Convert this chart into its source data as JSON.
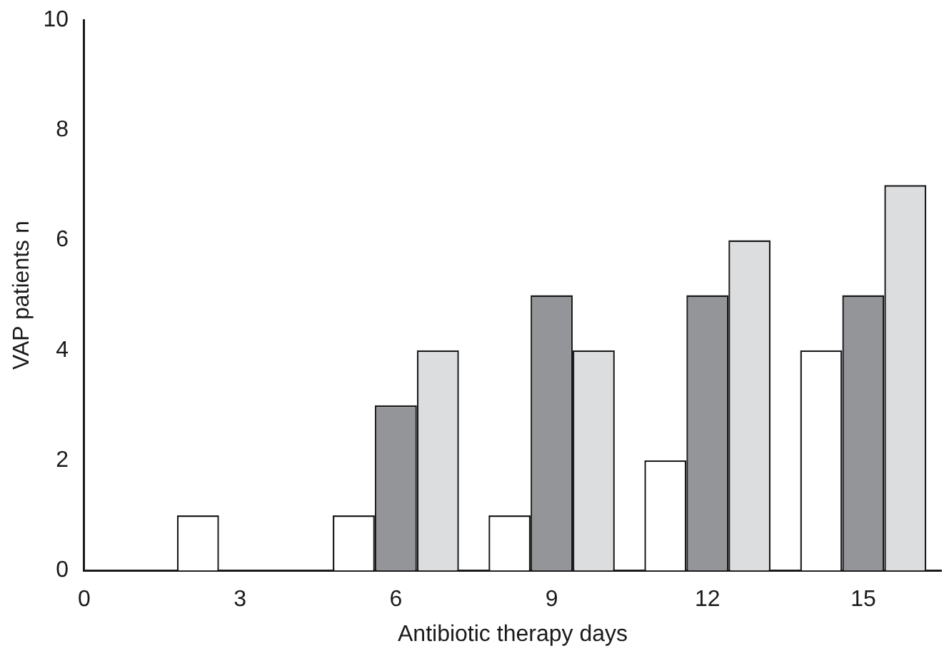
{
  "chart_data": {
    "type": "bar",
    "xlabel": "Antibiotic therapy days",
    "ylabel": "VAP patients n",
    "x": [
      3,
      6,
      9,
      12,
      15
    ],
    "series": [
      {
        "color": "#ffffff",
        "values": [
          1,
          1,
          1,
          2,
          4
        ]
      },
      {
        "color": "#939598",
        "values": [
          0,
          3,
          5,
          5,
          5
        ]
      },
      {
        "color": "#dcdddf",
        "values": [
          0,
          4,
          4,
          6,
          7
        ]
      }
    ],
    "xlim": [
      0,
      16.5
    ],
    "xticks": [
      0,
      3,
      6,
      9,
      12,
      15
    ],
    "ylim": [
      0,
      10
    ],
    "yticks": [
      0,
      2,
      4,
      6,
      8,
      10
    ],
    "grid": false,
    "legend": false
  }
}
